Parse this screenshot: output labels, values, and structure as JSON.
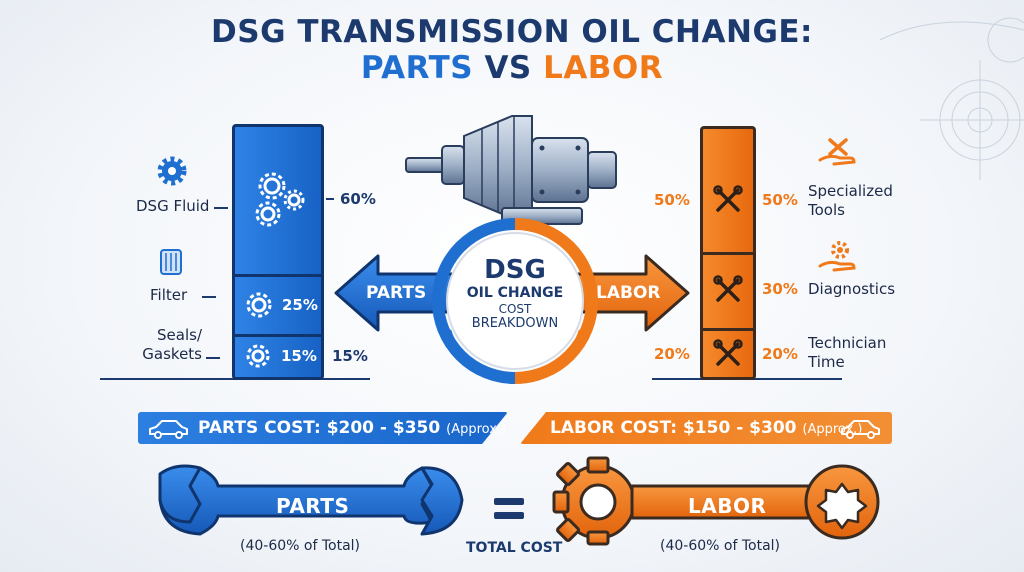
{
  "title": {
    "line1": "DSG TRANSMISSION OIL CHANGE:",
    "parts_word": "PARTS",
    "vs_word": "VS",
    "labor_word": "LABOR"
  },
  "parts_column": {
    "items": [
      {
        "label": "DSG Fluid",
        "percent": "60%",
        "icon": "gears-icon"
      },
      {
        "label": "Filter",
        "percent": "25%",
        "icon": "gear-icon"
      },
      {
        "label_line1": "Seals/",
        "label_line2": "Gaskets",
        "percent_inside": "15%",
        "percent_outside": "15%",
        "icon": "gear-icon"
      }
    ]
  },
  "labor_column": {
    "items": [
      {
        "label_line1": "Specialized",
        "label_line2": "Tools",
        "percent_left": "50%",
        "percent_right": "50%",
        "icon": "wrench-hand-icon"
      },
      {
        "label": "Diagnostics",
        "percent_right": "30%",
        "icon": "gear-hand-icon"
      },
      {
        "label_line1": "Technician",
        "label_line2": "Time",
        "percent_left": "20%",
        "percent_right": "20%"
      }
    ]
  },
  "center": {
    "line1": "DSG",
    "line2": "OIL CHANGE",
    "line3": "COST",
    "line4": "BREAKDOWN",
    "left_arrow": "PARTS",
    "right_arrow": "LABOR"
  },
  "banners": {
    "parts": {
      "main": "PARTS COST: $200 - $350",
      "note": "(Approx.)"
    },
    "labor": {
      "main": "LABOR COST: $150 - $300",
      "note": "(Approx.)"
    }
  },
  "bottom": {
    "parts_label": "PARTS",
    "parts_sub": "(40-60% of Total)",
    "total_label": "TOTAL COST",
    "labor_label": "LABOR",
    "labor_sub": "(40-60% of Total)"
  },
  "colors": {
    "blue": "#1f6fd1",
    "orange": "#f07a1a",
    "navy": "#1c3a6e"
  }
}
